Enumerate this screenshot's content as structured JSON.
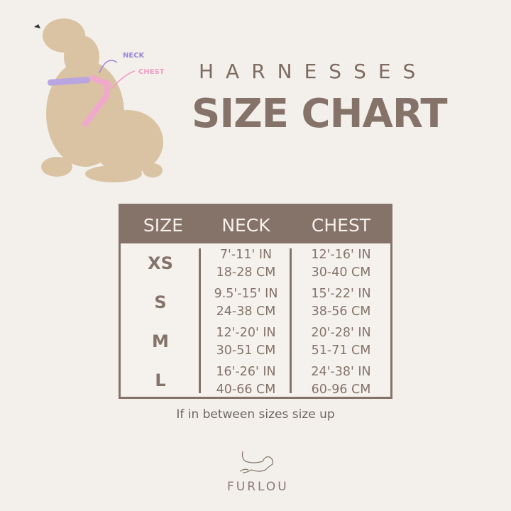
{
  "header": {
    "subtitle": "HARNESSES",
    "title": "SIZE CHART"
  },
  "image": {
    "labels": {
      "neck": "NECK",
      "chest": "CHEST"
    },
    "colors": {
      "neck": "#9a86d6",
      "chest": "#f29ac4"
    }
  },
  "table": {
    "headers": [
      "SIZE",
      "NECK",
      "CHEST"
    ],
    "rows": [
      {
        "size": "XS",
        "neck_in": "7'-11' IN",
        "neck_cm": "18-28 CM",
        "chest_in": "12'-16' IN",
        "chest_cm": "30-40 CM"
      },
      {
        "size": "S",
        "neck_in": "9.5'-15' IN",
        "neck_cm": "24-38 CM",
        "chest_in": "15'-22' IN",
        "chest_cm": "38-56 CM"
      },
      {
        "size": "M",
        "neck_in": "12'-20' IN",
        "neck_cm": "30-51 CM",
        "chest_in": "20'-28' IN",
        "chest_cm": "51-71 CM"
      },
      {
        "size": "L",
        "neck_in": "16'-26' IN",
        "neck_cm": "40-66 CM",
        "chest_in": "24'-38' IN",
        "chest_cm": "60-96 CM"
      }
    ]
  },
  "note": "If in between sizes size up",
  "brand": "FURLOU",
  "colors": {
    "primary": "#85736a",
    "background": "#f3f0eb"
  }
}
